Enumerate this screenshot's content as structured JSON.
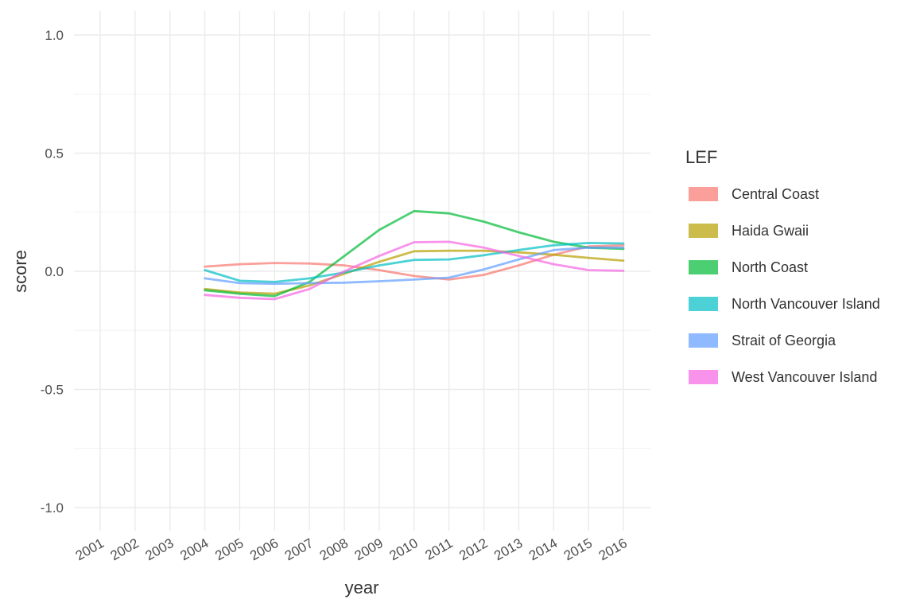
{
  "chart_data": {
    "type": "line",
    "title": "",
    "xlabel": "year",
    "ylabel": "score",
    "ylim": [
      -1.0,
      1.0
    ],
    "yticks": [
      -1.0,
      -0.5,
      0.0,
      0.5,
      1.0
    ],
    "ytick_labels": [
      "-1.0",
      "-0.5",
      "0.0",
      "0.5",
      "1.0"
    ],
    "x": [
      2001,
      2002,
      2003,
      2004,
      2005,
      2006,
      2007,
      2008,
      2009,
      2010,
      2011,
      2012,
      2013,
      2014,
      2015,
      2016
    ],
    "xtick_labels": [
      "2001",
      "2002",
      "2003",
      "2004",
      "2005",
      "2006",
      "2007",
      "2008",
      "2009",
      "2010",
      "2011",
      "2012",
      "2013",
      "2014",
      "2015",
      "2016"
    ],
    "grid": true,
    "legend": {
      "title": "LEF",
      "position": "right"
    },
    "series": [
      {
        "name": "Central Coast",
        "color": "#F8766D",
        "x": [
          2004,
          2005,
          2006,
          2007,
          2008,
          2009,
          2010,
          2011,
          2012,
          2013,
          2014,
          2015,
          2016
        ],
        "values": [
          0.02,
          0.03,
          0.035,
          0.033,
          0.025,
          0.005,
          -0.02,
          -0.035,
          -0.015,
          0.025,
          0.07,
          0.105,
          0.11
        ]
      },
      {
        "name": "Haida Gwaii",
        "color": "#B79F00",
        "x": [
          2004,
          2005,
          2006,
          2007,
          2008,
          2009,
          2010,
          2011,
          2012,
          2013,
          2014,
          2015,
          2016
        ],
        "values": [
          -0.075,
          -0.09,
          -0.095,
          -0.06,
          -0.01,
          0.04,
          0.085,
          0.087,
          0.087,
          0.08,
          0.07,
          0.057,
          0.045
        ]
      },
      {
        "name": "North Coast",
        "color": "#00BA38",
        "x": [
          2004,
          2005,
          2006,
          2007,
          2008,
          2009,
          2010,
          2011,
          2012,
          2013,
          2014,
          2015,
          2016
        ],
        "values": [
          -0.08,
          -0.095,
          -0.105,
          -0.045,
          0.065,
          0.175,
          0.255,
          0.245,
          0.21,
          0.165,
          0.125,
          0.1,
          0.095
        ]
      },
      {
        "name": "North Vancouver Island",
        "color": "#00BFC4",
        "x": [
          2004,
          2005,
          2006,
          2007,
          2008,
          2009,
          2010,
          2011,
          2012,
          2013,
          2014,
          2015,
          2016
        ],
        "values": [
          0.005,
          -0.04,
          -0.045,
          -0.03,
          -0.005,
          0.025,
          0.048,
          0.05,
          0.068,
          0.09,
          0.11,
          0.12,
          0.118
        ]
      },
      {
        "name": "Strait of Georgia",
        "color": "#619CFF",
        "x": [
          2004,
          2005,
          2006,
          2007,
          2008,
          2009,
          2010,
          2011,
          2012,
          2013,
          2014,
          2015,
          2016
        ],
        "values": [
          -0.03,
          -0.05,
          -0.053,
          -0.05,
          -0.048,
          -0.042,
          -0.035,
          -0.027,
          0.008,
          0.05,
          0.09,
          0.1,
          0.1
        ]
      },
      {
        "name": "West Vancouver Island",
        "color": "#F564E3",
        "x": [
          2004,
          2005,
          2006,
          2007,
          2008,
          2009,
          2010,
          2011,
          2012,
          2013,
          2014,
          2015,
          2016
        ],
        "values": [
          -0.1,
          -0.112,
          -0.118,
          -0.075,
          0.0,
          0.065,
          0.123,
          0.125,
          0.1,
          0.065,
          0.03,
          0.005,
          0.002
        ]
      }
    ]
  }
}
